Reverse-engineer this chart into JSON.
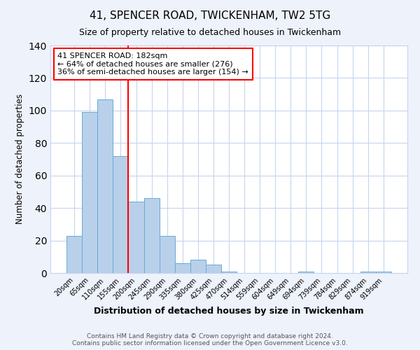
{
  "title": "41, SPENCER ROAD, TWICKENHAM, TW2 5TG",
  "subtitle": "Size of property relative to detached houses in Twickenham",
  "xlabel": "Distribution of detached houses by size in Twickenham",
  "ylabel": "Number of detached properties",
  "categories": [
    "20sqm",
    "65sqm",
    "110sqm",
    "155sqm",
    "200sqm",
    "245sqm",
    "290sqm",
    "335sqm",
    "380sqm",
    "425sqm",
    "470sqm",
    "514sqm",
    "559sqm",
    "604sqm",
    "649sqm",
    "694sqm",
    "739sqm",
    "784sqm",
    "829sqm",
    "874sqm",
    "919sqm"
  ],
  "values": [
    23,
    99,
    107,
    72,
    44,
    46,
    23,
    6,
    8,
    5,
    1,
    0,
    0,
    0,
    0,
    1,
    0,
    0,
    0,
    1,
    1
  ],
  "bar_color": "#b8d0ea",
  "bar_edge_color": "#6aaad4",
  "bar_width": 1.0,
  "vline_color": "red",
  "annotation_text": "41 SPENCER ROAD: 182sqm\n← 64% of detached houses are smaller (276)\n36% of semi-detached houses are larger (154) →",
  "annotation_box_color": "white",
  "annotation_box_edgecolor": "red",
  "ylim": [
    0,
    140
  ],
  "yticks": [
    0,
    20,
    40,
    60,
    80,
    100,
    120,
    140
  ],
  "footer_line1": "Contains HM Land Registry data © Crown copyright and database right 2024.",
  "footer_line2": "Contains public sector information licensed under the Open Government Licence v3.0.",
  "bg_color": "#eef2fb",
  "plot_bg_color": "#ffffff",
  "grid_color": "#c5d5ed"
}
